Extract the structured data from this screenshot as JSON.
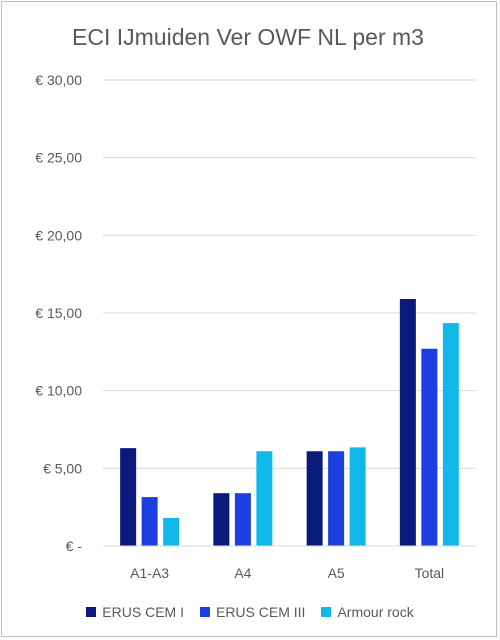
{
  "chart_data": {
    "type": "bar",
    "title": "ECI IJmuiden Ver OWF NL per m3",
    "xlabel": "",
    "ylabel": "",
    "categories": [
      "A1-A3",
      "A4",
      "A5",
      "Total"
    ],
    "series": [
      {
        "name": "ERUS CEM I",
        "values": [
          6.3,
          3.4,
          6.1,
          15.9
        ],
        "color": "#0a1a7a"
      },
      {
        "name": "ERUS CEM III",
        "values": [
          3.15,
          3.4,
          6.1,
          12.7
        ],
        "color": "#1d3ee0"
      },
      {
        "name": "Armour rock",
        "values": [
          1.8,
          6.1,
          6.35,
          14.35
        ],
        "color": "#12b8ea"
      }
    ],
    "ylim": [
      0,
      30
    ],
    "yticks": [
      0,
      5,
      10,
      15,
      20,
      25,
      30
    ],
    "ytick_labels": [
      "€ -",
      "€ 5,00",
      "€ 10,00",
      "€ 15,00",
      "€ 20,00",
      "€ 25,00",
      "€ 30,00"
    ],
    "grid": true,
    "legend_position": "bottom"
  }
}
